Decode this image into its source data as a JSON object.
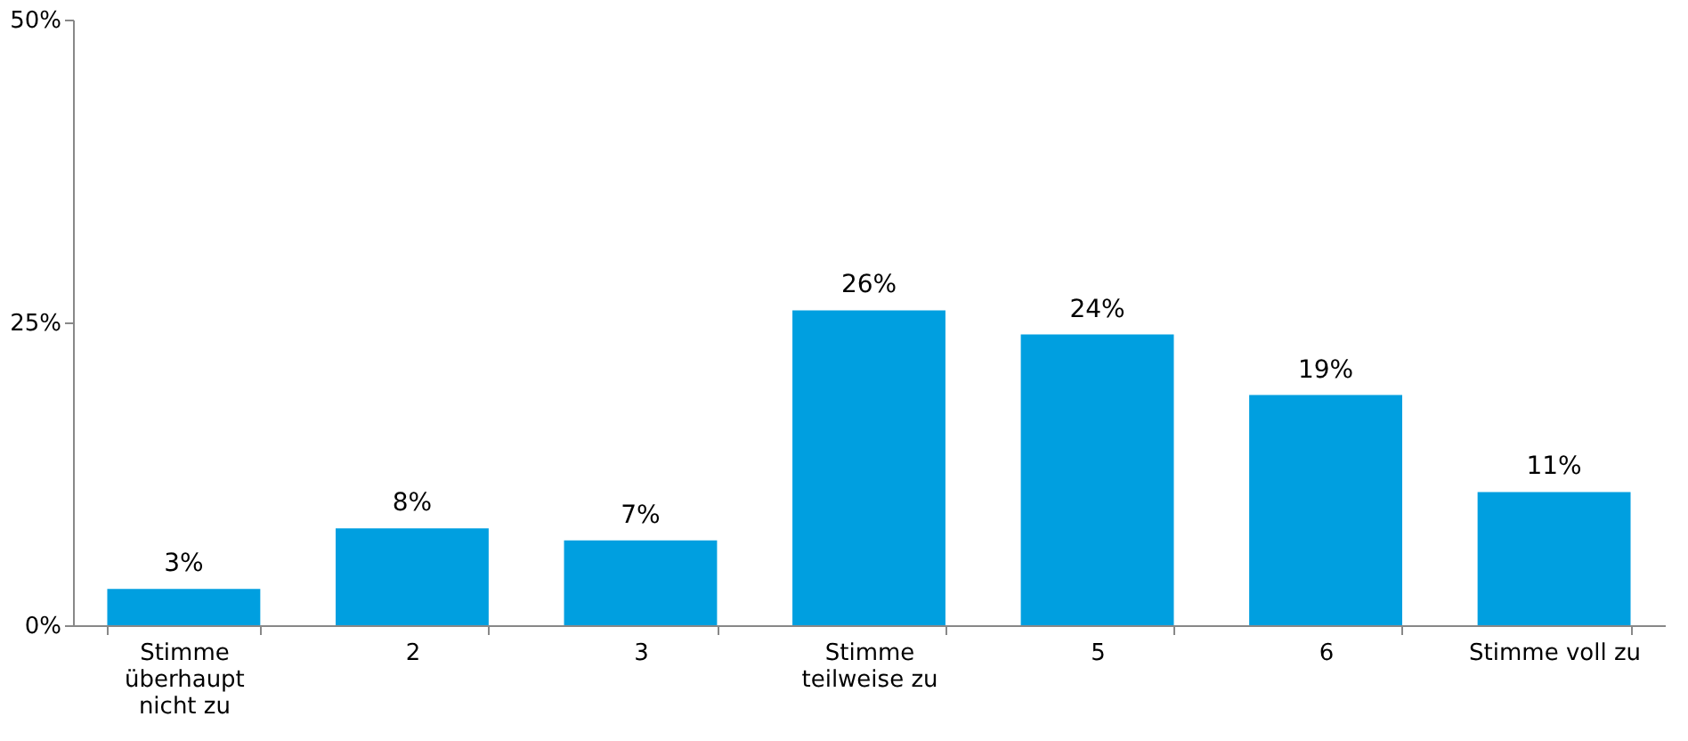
{
  "chart_data": {
    "type": "bar",
    "categories": [
      "Stimme überhaupt nicht zu",
      "2",
      "3",
      "Stimme teilweise zu",
      "5",
      "6",
      "Stimme voll zu"
    ],
    "values": [
      3,
      8,
      7,
      26,
      24,
      19,
      11
    ],
    "value_labels": [
      "3%",
      "8%",
      "7%",
      "26%",
      "24%",
      "19%",
      "11%"
    ],
    "color": "#009fe0",
    "ylim": [
      0,
      50
    ],
    "yticks": [
      {
        "value": 0,
        "label": "0%"
      },
      {
        "value": 25,
        "label": "25%"
      },
      {
        "value": 50,
        "label": "50%"
      }
    ],
    "grid": false
  }
}
